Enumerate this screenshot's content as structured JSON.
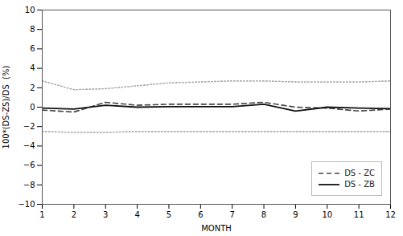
{
  "chart_data": {
    "type": "line",
    "x": [
      1,
      2,
      3,
      4,
      5,
      6,
      7,
      8,
      9,
      10,
      11,
      12
    ],
    "series": [
      {
        "color": "#aaaaaa",
        "line_style": "dotted",
        "values": [
          2.7,
          1.8,
          1.9,
          2.2,
          2.5,
          2.6,
          2.7,
          2.7,
          2.6,
          2.6,
          2.6,
          2.7
        ]
      },
      {
        "color": "#aaaaaa",
        "line_style": "dotted",
        "values": [
          -2.5,
          -2.6,
          -2.6,
          -2.5,
          -2.5,
          -2.5,
          -2.5,
          -2.5,
          -2.5,
          -2.5,
          -2.5,
          -2.5
        ]
      },
      {
        "color": "#aaaaaa",
        "line_style": "dotted",
        "values": [
          2.7,
          1.8,
          1.9,
          2.2,
          2.5,
          2.6,
          2.7,
          2.7,
          2.6,
          2.6,
          2.6,
          2.7
        ]
      },
      {
        "color": "#aaaaaa",
        "line_style": "dotted",
        "values": [
          -2.5,
          -2.6,
          -2.6,
          -2.5,
          -2.5,
          -2.5,
          -2.5,
          -2.5,
          -2.5,
          -2.5,
          -2.5,
          -2.5
        ]
      },
      {
        "name": "DS - ZC",
        "color": "#444444",
        "line_style": "dashed",
        "values": [
          -0.3,
          -0.5,
          0.5,
          0.2,
          0.3,
          0.3,
          0.3,
          0.5,
          0.0,
          -0.1,
          -0.4,
          -0.2
        ]
      },
      {
        "name": "DS - ZB",
        "color": "#111111",
        "line_style": "solid",
        "values": [
          -0.1,
          -0.2,
          0.2,
          0.0,
          0.05,
          0.05,
          0.05,
          0.3,
          -0.4,
          0.0,
          -0.1,
          -0.15
        ]
      }
    ],
    "xlabel": "MONTH",
    "ylabel": "100*(DS-ZS)/DS  (%)",
    "xlim": [
      1,
      12
    ],
    "ylim": [
      -10,
      10
    ],
    "xticks": [
      1,
      2,
      3,
      4,
      5,
      6,
      7,
      8,
      9,
      10,
      11,
      12
    ],
    "yticks": [
      -10,
      -8,
      -6,
      -4,
      -2,
      0,
      2,
      4,
      6,
      8,
      10
    ],
    "grid": false,
    "legend": "lower right"
  }
}
